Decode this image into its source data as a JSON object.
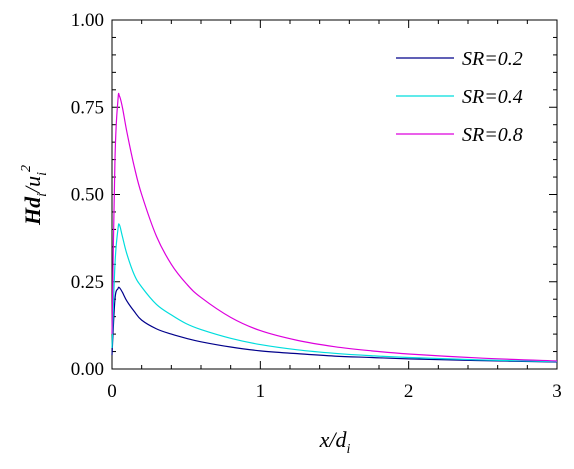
{
  "chart_data": {
    "type": "line",
    "xlim": [
      0,
      3
    ],
    "ylim": [
      0,
      1.0
    ],
    "x_ticks": [
      "0",
      "1",
      "2",
      "3"
    ],
    "y_ticks": [
      "0.00",
      "0.25",
      "0.50",
      "0.75",
      "1.00"
    ],
    "xlabel": {
      "main": "x/d",
      "sub": "i"
    },
    "ylabel": {
      "main": "Hd",
      "sub1": "i",
      "mid": "/u",
      "sub2": "i",
      "sup": "2"
    },
    "legend_position": "top-right",
    "grid": false,
    "series": [
      {
        "name": "SR=0.2",
        "color": "#00008b",
        "x": [
          0,
          0.02,
          0.04,
          0.05,
          0.07,
          0.1,
          0.15,
          0.2,
          0.3,
          0.4,
          0.5,
          0.6,
          0.8,
          1.0,
          1.25,
          1.5,
          1.75,
          2.0,
          2.5,
          3.0
        ],
        "y": [
          0.04,
          0.2,
          0.23,
          0.233,
          0.22,
          0.195,
          0.165,
          0.14,
          0.115,
          0.1,
          0.088,
          0.078,
          0.063,
          0.052,
          0.044,
          0.037,
          0.033,
          0.029,
          0.024,
          0.02
        ]
      },
      {
        "name": "SR=0.4",
        "color": "#00dddd",
        "x": [
          0,
          0.02,
          0.04,
          0.05,
          0.07,
          0.1,
          0.15,
          0.2,
          0.3,
          0.4,
          0.5,
          0.6,
          0.8,
          1.0,
          1.25,
          1.5,
          1.75,
          2.0,
          2.5,
          3.0
        ],
        "y": [
          0.06,
          0.3,
          0.4,
          0.413,
          0.38,
          0.33,
          0.27,
          0.235,
          0.185,
          0.155,
          0.13,
          0.113,
          0.088,
          0.07,
          0.055,
          0.045,
          0.038,
          0.033,
          0.026,
          0.021
        ]
      },
      {
        "name": "SR=0.8",
        "color": "#dd00dd",
        "x": [
          0,
          0.02,
          0.04,
          0.05,
          0.07,
          0.1,
          0.15,
          0.2,
          0.3,
          0.4,
          0.5,
          0.6,
          0.8,
          1.0,
          1.25,
          1.5,
          1.75,
          2.0,
          2.5,
          3.0
        ],
        "y": [
          0.1,
          0.6,
          0.77,
          0.782,
          0.75,
          0.68,
          0.58,
          0.5,
          0.38,
          0.3,
          0.245,
          0.205,
          0.148,
          0.11,
          0.082,
          0.064,
          0.052,
          0.043,
          0.031,
          0.023
        ]
      }
    ]
  }
}
